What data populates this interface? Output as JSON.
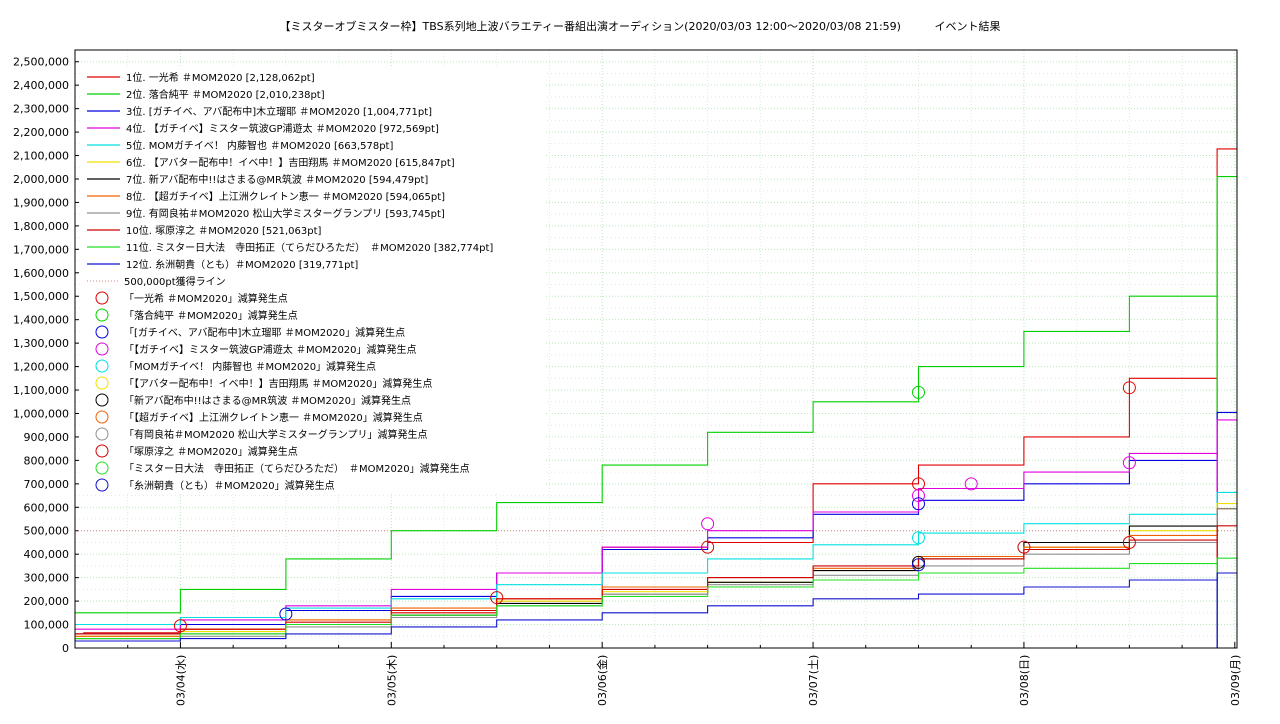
{
  "chart_data": {
    "type": "line",
    "title": "【ミスターオブミスター枠】TBS系列地上波バラエティー番組出演オーディション(2020/03/03 12:00～2020/03/08 21:59)",
    "subtitle": "イベント結果",
    "xlabel": "",
    "ylabel": "",
    "x_ticks": [
      "03/04(水)",
      "03/05(木)",
      "03/06(金)",
      "03/07(土)",
      "03/08(日)",
      "03/09(月)"
    ],
    "xlim": [
      "2020-03-03 12:00",
      "2020-03-09 00:15"
    ],
    "ylim": [
      0,
      2550000
    ],
    "y_ticks": [
      0,
      100000,
      200000,
      300000,
      400000,
      500000,
      600000,
      700000,
      800000,
      900000,
      1000000,
      1100000,
      1200000,
      1300000,
      1400000,
      1500000,
      1600000,
      1700000,
      1800000,
      1900000,
      2000000,
      2100000,
      2200000,
      2300000,
      2400000,
      2500000
    ],
    "y_tick_labels": [
      "0",
      "100,000",
      "200,000",
      "300,000",
      "400,000",
      "500,000",
      "600,000",
      "700,000",
      "800,000",
      "900,000",
      "1,000,000",
      "1,100,000",
      "1,200,000",
      "1,300,000",
      "1,400,000",
      "1,500,000",
      "1,600,000",
      "1,700,000",
      "1,800,000",
      "1,900,000",
      "2,000,000",
      "2,100,000",
      "2,200,000",
      "2,300,000",
      "2,400,000",
      "2,500,000"
    ],
    "grid": true,
    "legend_position": "top-left",
    "threshold": {
      "label": "500,000pt獲得ライン",
      "value": 500000,
      "color": "#d08080"
    },
    "series": [
      {
        "name": "1位. 一光希 ＃MOM2020 [2,128,062pt]",
        "color": "#e00000",
        "x": [
          "2020-03-03 12:00",
          "2020-03-03 13:00",
          "2020-03-04 00:00",
          "2020-03-04 12:00",
          "2020-03-05 00:00",
          "2020-03-05 12:00",
          "2020-03-06 00:00",
          "2020-03-06 12:00",
          "2020-03-07 00:00",
          "2020-03-07 12:00",
          "2020-03-08 00:00",
          "2020-03-08 12:00",
          "2020-03-08 21:59"
        ],
        "y": [
          60000,
          65000,
          80000,
          100000,
          150000,
          200000,
          430000,
          450000,
          700000,
          780000,
          900000,
          1150000,
          2128062
        ]
      },
      {
        "name": "2位. 落合純平 ＃MOM2020 [2,010,238pt]",
        "color": "#00d000",
        "x": [
          "2020-03-03 12:00",
          "2020-03-04 00:00",
          "2020-03-04 12:00",
          "2020-03-05 00:00",
          "2020-03-05 12:00",
          "2020-03-06 00:00",
          "2020-03-06 12:00",
          "2020-03-07 00:00",
          "2020-03-07 12:00",
          "2020-03-08 00:00",
          "2020-03-08 12:00",
          "2020-03-08 21:59"
        ],
        "y": [
          150000,
          250000,
          380000,
          500000,
          620000,
          780000,
          920000,
          1050000,
          1200000,
          1350000,
          1500000,
          2010238
        ]
      },
      {
        "name": "3位. [ガチイベ、アバ配布中]木立瑠耶 ＃MOM2020 [1,004,771pt]",
        "color": "#0000e0",
        "x": [
          "2020-03-03 12:00",
          "2020-03-04 00:00",
          "2020-03-04 12:00",
          "2020-03-05 00:00",
          "2020-03-05 12:00",
          "2020-03-06 00:00",
          "2020-03-06 12:00",
          "2020-03-07 00:00",
          "2020-03-07 12:00",
          "2020-03-08 00:00",
          "2020-03-08 12:00",
          "2020-03-08 21:59"
        ],
        "y": [
          60000,
          100000,
          160000,
          220000,
          320000,
          420000,
          470000,
          570000,
          630000,
          700000,
          800000,
          1004771
        ]
      },
      {
        "name": "4位. 【ガチイベ】ミスター筑波GP浦遊太 ＃MOM2020 [972,569pt]",
        "color": "#e000e0",
        "x": [
          "2020-03-03 12:00",
          "2020-03-04 00:00",
          "2020-03-04 12:00",
          "2020-03-05 00:00",
          "2020-03-05 12:00",
          "2020-03-06 00:00",
          "2020-03-06 12:00",
          "2020-03-07 00:00",
          "2020-03-07 12:00",
          "2020-03-08 00:00",
          "2020-03-08 12:00",
          "2020-03-08 21:59"
        ],
        "y": [
          80000,
          120000,
          180000,
          250000,
          320000,
          430000,
          500000,
          580000,
          680000,
          750000,
          830000,
          972569
        ]
      },
      {
        "name": "5位. MOMガチイベ！ 内藤智也 ＃MOM2020 [663,578pt]",
        "color": "#00e0e0",
        "x": [
          "2020-03-03 12:00",
          "2020-03-04 00:00",
          "2020-03-04 12:00",
          "2020-03-05 00:00",
          "2020-03-05 12:00",
          "2020-03-06 00:00",
          "2020-03-06 12:00",
          "2020-03-07 00:00",
          "2020-03-07 12:00",
          "2020-03-08 00:00",
          "2020-03-08 12:00",
          "2020-03-08 21:59"
        ],
        "y": [
          100000,
          130000,
          170000,
          210000,
          270000,
          320000,
          380000,
          440000,
          490000,
          530000,
          570000,
          663578
        ]
      },
      {
        "name": "6位. 【アバター配布中！イベ中！】吉田翔馬 ＃MOM2020 [615,847pt]",
        "color": "#f0e000",
        "x": [
          "2020-03-03 12:00",
          "2020-03-04 00:00",
          "2020-03-04 12:00",
          "2020-03-05 00:00",
          "2020-03-05 12:00",
          "2020-03-06 00:00",
          "2020-03-06 12:00",
          "2020-03-07 00:00",
          "2020-03-07 12:00",
          "2020-03-08 00:00",
          "2020-03-08 12:00",
          "2020-03-08 21:59"
        ],
        "y": [
          50000,
          70000,
          120000,
          160000,
          200000,
          240000,
          280000,
          330000,
          380000,
          430000,
          500000,
          615847
        ]
      },
      {
        "name": "7位. 新アバ配布中!!はさまる@MR筑波 ＃MOM2020 [594,479pt]",
        "color": "#000000",
        "x": [
          "2020-03-03 12:00",
          "2020-03-04 00:00",
          "2020-03-04 12:00",
          "2020-03-05 00:00",
          "2020-03-05 12:00",
          "2020-03-06 00:00",
          "2020-03-06 12:00",
          "2020-03-07 00:00",
          "2020-03-07 12:00",
          "2020-03-08 00:00",
          "2020-03-08 12:00",
          "2020-03-08 21:59"
        ],
        "y": [
          40000,
          60000,
          100000,
          140000,
          190000,
          230000,
          280000,
          330000,
          380000,
          450000,
          520000,
          594479
        ]
      },
      {
        "name": "8位. 【超ガチイベ】上江洲クレイトン恵一 ＃MOM2020 [594,065pt]",
        "color": "#f06000",
        "x": [
          "2020-03-03 12:00",
          "2020-03-04 00:00",
          "2020-03-04 12:00",
          "2020-03-05 00:00",
          "2020-03-05 12:00",
          "2020-03-06 00:00",
          "2020-03-06 12:00",
          "2020-03-07 00:00",
          "2020-03-07 12:00",
          "2020-03-08 00:00",
          "2020-03-08 12:00",
          "2020-03-08 21:59"
        ],
        "y": [
          50000,
          80000,
          120000,
          170000,
          210000,
          260000,
          300000,
          340000,
          390000,
          430000,
          480000,
          594065
        ]
      },
      {
        "name": "9位. 有岡良祐＃MOM2020 松山大学ミスターグランプリ [593,745pt]",
        "color": "#909090",
        "x": [
          "2020-03-03 12:00",
          "2020-03-04 00:00",
          "2020-03-04 12:00",
          "2020-03-05 00:00",
          "2020-03-05 12:00",
          "2020-03-06 00:00",
          "2020-03-06 12:00",
          "2020-03-07 00:00",
          "2020-03-07 12:00",
          "2020-03-08 00:00",
          "2020-03-08 12:00",
          "2020-03-08 21:59"
        ],
        "y": [
          30000,
          50000,
          90000,
          130000,
          180000,
          230000,
          270000,
          310000,
          350000,
          400000,
          450000,
          593745
        ]
      },
      {
        "name": "10位. 塚原淳之 ＃MOM2020 [521,063pt]",
        "color": "#d00000",
        "x": [
          "2020-03-03 12:00",
          "2020-03-04 00:00",
          "2020-03-04 12:00",
          "2020-03-05 00:00",
          "2020-03-05 12:00",
          "2020-03-06 00:00",
          "2020-03-06 12:00",
          "2020-03-07 00:00",
          "2020-03-07 12:00",
          "2020-03-08 00:00",
          "2020-03-08 12:00",
          "2020-03-08 21:59"
        ],
        "y": [
          60000,
          80000,
          110000,
          160000,
          210000,
          250000,
          300000,
          350000,
          380000,
          420000,
          460000,
          521063
        ]
      },
      {
        "name": "11位. ミスター日大法　寺田拓正（てらだひろただ）　＃MOM2020 [382,774pt]",
        "color": "#20e020",
        "x": [
          "2020-03-03 12:00",
          "2020-03-04 00:00",
          "2020-03-04 12:00",
          "2020-03-05 00:00",
          "2020-03-05 12:00",
          "2020-03-06 00:00",
          "2020-03-06 12:00",
          "2020-03-07 00:00",
          "2020-03-07 12:00",
          "2020-03-08 00:00",
          "2020-03-08 12:00",
          "2020-03-08 21:59"
        ],
        "y": [
          40000,
          60000,
          100000,
          140000,
          180000,
          220000,
          260000,
          290000,
          320000,
          340000,
          360000,
          382774
        ]
      },
      {
        "name": "12位. 糸洲朝貴（とも）＃MOM2020 [319,771pt]",
        "color": "#1010d0",
        "x": [
          "2020-03-03 12:00",
          "2020-03-04 00:00",
          "2020-03-04 12:00",
          "2020-03-05 00:00",
          "2020-03-05 12:00",
          "2020-03-06 00:00",
          "2020-03-06 12:00",
          "2020-03-07 00:00",
          "2020-03-07 12:00",
          "2020-03-08 00:00",
          "2020-03-08 12:00",
          "2020-03-08 21:59"
        ],
        "y": [
          30000,
          40000,
          60000,
          90000,
          120000,
          150000,
          180000,
          210000,
          230000,
          260000,
          290000,
          319771
        ]
      }
    ],
    "penalty_points": [
      {
        "name": "「一光希 ＃MOM2020」減算発生点",
        "color": "#e00000",
        "points": [
          [
            "2020-03-04 00:00",
            95000
          ],
          [
            "2020-03-05 12:00",
            215000
          ],
          [
            "2020-03-07 12:00",
            700000
          ],
          [
            "2020-03-08 12:00",
            1110000
          ]
        ]
      },
      {
        "name": "「落合純平 ＃MOM2020」減算発生点",
        "color": "#00d000",
        "points": [
          [
            "2020-03-07 12:00",
            1090000
          ]
        ]
      },
      {
        "name": "「[ガチイベ、アバ配布中]木立瑠耶 ＃MOM2020」減算発生点",
        "color": "#0000e0",
        "points": [
          [
            "2020-03-04 12:00",
            145000
          ],
          [
            "2020-03-07 12:00",
            615000
          ]
        ]
      },
      {
        "name": "「【ガチイベ】ミスター筑波GP浦遊太 ＃MOM2020」減算発生点",
        "color": "#e000e0",
        "points": [
          [
            "2020-03-06 12:00",
            530000
          ],
          [
            "2020-03-07 12:00",
            650000
          ],
          [
            "2020-03-07 18:00",
            700000
          ],
          [
            "2020-03-08 12:00",
            790000
          ]
        ]
      },
      {
        "name": "「MOMガチイベ！ 内藤智也 ＃MOM2020」減算発生点",
        "color": "#00e0e0",
        "points": [
          [
            "2020-03-07 12:00",
            470000
          ]
        ]
      },
      {
        "name": "「【アバター配布中！イベ中！】吉田翔馬 ＃MOM2020」減算発生点",
        "color": "#f0e000",
        "points": []
      },
      {
        "name": "「新アバ配布中!!はさまる@MR筑波 ＃MOM2020」減算発生点",
        "color": "#000000",
        "points": [
          [
            "2020-03-07 12:00",
            365000
          ]
        ]
      },
      {
        "name": "「【超ガチイベ】上江洲クレイトン恵一 ＃MOM2020」減算発生点",
        "color": "#f06000",
        "points": []
      },
      {
        "name": "「有岡良祐＃MOM2020 松山大学ミスターグランプリ」減算発生点",
        "color": "#909090",
        "points": []
      },
      {
        "name": "「塚原淳之 ＃MOM2020」減算発生点",
        "color": "#d00000",
        "points": [
          [
            "2020-03-06 12:00",
            430000
          ],
          [
            "2020-03-08 00:00",
            430000
          ],
          [
            "2020-03-08 12:00",
            450000
          ]
        ]
      },
      {
        "name": "「ミスター日大法　寺田拓正（てらだひろただ）　＃MOM2020」減算発生点",
        "color": "#20e020",
        "points": []
      },
      {
        "name": "「糸洲朝貴（とも）＃MOM2020」減算発生点",
        "color": "#1010d0",
        "points": [
          [
            "2020-03-07 12:00",
            355000
          ]
        ]
      }
    ]
  }
}
